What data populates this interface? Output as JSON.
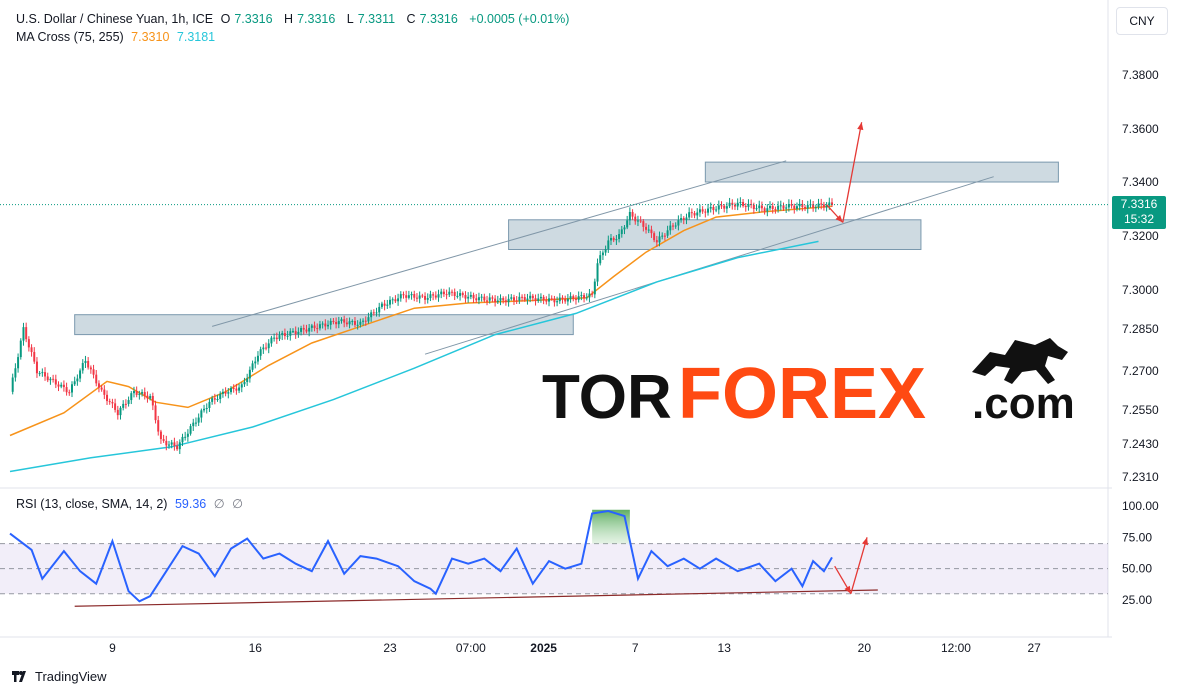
{
  "header": {
    "symbol": "U.S. Dollar / Chinese Yuan, 1h, ICE",
    "o_label": "O",
    "o_value": "7.3316",
    "h_label": "H",
    "h_value": "7.3316",
    "l_label": "L",
    "l_value": "7.3311",
    "c_label": "C",
    "c_value": "7.3316",
    "change": "+0.0005 (+0.01%)",
    "ma_label": "MA Cross (75, 255)",
    "ma_fast_value": "7.3310",
    "ma_slow_value": "7.3181",
    "rsi_label": "RSI (13, close, SMA, 14, 2)",
    "rsi_value": "59.36",
    "rsi_extra1": "∅",
    "rsi_extra2": "∅"
  },
  "currency_button": "CNY",
  "price_tag": {
    "price": "7.3316",
    "countdown": "15:32"
  },
  "footer": {
    "brand": "TradingView"
  },
  "watermark": {
    "part1": "TOR",
    "part2": "FOREX",
    "part3": ".com"
  },
  "colors": {
    "up": "#089981",
    "down": "#f23645",
    "ma_fast": "#f7931a",
    "ma_slow": "#26c6da",
    "rsi": "#2962ff",
    "zone_fill": "#c5d3dc",
    "arrow": "#e53935"
  },
  "chart_data": [
    {
      "type": "candlestick",
      "title": "U.S. Dollar / Chinese Yuan, 1h, ICE",
      "x_tick_labels": [
        "9",
        "16",
        "23",
        "07:00",
        "2025",
        "7",
        "13",
        "20",
        "12:00",
        "27"
      ],
      "y_tick_labels": [
        "7.3800",
        "7.3600",
        "7.3400",
        "7.3200",
        "7.3000",
        "7.2850",
        "7.2700",
        "7.2550",
        "7.2430",
        "7.2310"
      ],
      "y_ticks": [
        7.38,
        7.36,
        7.34,
        7.32,
        7.3,
        7.285,
        7.27,
        7.255,
        7.243,
        7.231
      ],
      "last_price": 7.3316,
      "close_path": [
        [
          0,
          7.262
        ],
        [
          5,
          7.285
        ],
        [
          10,
          7.27
        ],
        [
          16,
          7.266
        ],
        [
          22,
          7.262
        ],
        [
          28,
          7.274
        ],
        [
          34,
          7.262
        ],
        [
          40,
          7.254
        ],
        [
          46,
          7.262
        ],
        [
          52,
          7.26
        ],
        [
          56,
          7.244
        ],
        [
          62,
          7.242
        ],
        [
          68,
          7.25
        ],
        [
          74,
          7.258
        ],
        [
          80,
          7.262
        ],
        [
          86,
          7.264
        ],
        [
          92,
          7.276
        ],
        [
          98,
          7.282
        ],
        [
          106,
          7.284
        ],
        [
          114,
          7.286
        ],
        [
          122,
          7.288
        ],
        [
          130,
          7.287
        ],
        [
          138,
          7.294
        ],
        [
          146,
          7.298
        ],
        [
          154,
          7.297
        ],
        [
          162,
          7.299
        ],
        [
          172,
          7.297
        ],
        [
          182,
          7.296
        ],
        [
          192,
          7.297
        ],
        [
          202,
          7.296
        ],
        [
          210,
          7.297
        ],
        [
          216,
          7.298
        ],
        [
          218,
          7.31
        ],
        [
          222,
          7.318
        ],
        [
          226,
          7.32
        ],
        [
          230,
          7.328
        ],
        [
          236,
          7.323
        ],
        [
          240,
          7.318
        ],
        [
          246,
          7.324
        ],
        [
          252,
          7.328
        ],
        [
          260,
          7.33
        ],
        [
          270,
          7.332
        ],
        [
          280,
          7.33
        ],
        [
          288,
          7.331
        ],
        [
          296,
          7.331
        ],
        [
          305,
          7.3316
        ]
      ],
      "ma_fast_path": [
        [
          0,
          7.246
        ],
        [
          20,
          7.254
        ],
        [
          36,
          7.266
        ],
        [
          44,
          7.264
        ],
        [
          54,
          7.258
        ],
        [
          66,
          7.256
        ],
        [
          80,
          7.262
        ],
        [
          96,
          7.272
        ],
        [
          112,
          7.28
        ],
        [
          130,
          7.286
        ],
        [
          150,
          7.293
        ],
        [
          170,
          7.295
        ],
        [
          195,
          7.296
        ],
        [
          214,
          7.297
        ],
        [
          224,
          7.305
        ],
        [
          236,
          7.314
        ],
        [
          250,
          7.322
        ],
        [
          262,
          7.327
        ],
        [
          280,
          7.329
        ],
        [
          305,
          7.331
        ]
      ],
      "ma_slow_path": [
        [
          0,
          7.233
        ],
        [
          30,
          7.238
        ],
        [
          60,
          7.242
        ],
        [
          90,
          7.249
        ],
        [
          120,
          7.259
        ],
        [
          150,
          7.271
        ],
        [
          180,
          7.283
        ],
        [
          210,
          7.291
        ],
        [
          240,
          7.303
        ],
        [
          270,
          7.312
        ],
        [
          300,
          7.318
        ]
      ],
      "channel_lines": [
        {
          "from": [
            75,
            7.286
          ],
          "to": [
            288,
            7.348
          ]
        },
        {
          "from": [
            154,
            7.276
          ],
          "to": [
            365,
            7.342
          ]
        }
      ],
      "zones": [
        {
          "x_from": 24,
          "x_to": 209,
          "y_low": 7.283,
          "y_high": 7.2905
        },
        {
          "x_from": 185,
          "x_to": 338,
          "y_low": 7.315,
          "y_high": 7.326
        },
        {
          "x_from": 258,
          "x_to": 389,
          "y_low": 7.34,
          "y_high": 7.3475
        }
      ],
      "projection_arrows": [
        {
          "from": [
            303,
            7.3316
          ],
          "to": [
            309,
            7.325
          ]
        },
        {
          "from": [
            309,
            7.325
          ],
          "to": [
            316,
            7.3625
          ]
        }
      ]
    },
    {
      "type": "line",
      "title": "RSI (13, close, SMA, 14, 2)",
      "y_tick_labels": [
        "100.00",
        "75.00",
        "50.00",
        "25.00"
      ],
      "y_ticks": [
        100,
        75,
        50,
        25
      ],
      "band": [
        30,
        70
      ],
      "series": [
        {
          "name": "RSI",
          "points": [
            [
              0,
              78
            ],
            [
              8,
              65
            ],
            [
              12,
              42
            ],
            [
              20,
              64
            ],
            [
              26,
              48
            ],
            [
              32,
              38
            ],
            [
              38,
              72
            ],
            [
              44,
              32
            ],
            [
              48,
              24
            ],
            [
              52,
              28
            ],
            [
              58,
              48
            ],
            [
              64,
              68
            ],
            [
              70,
              62
            ],
            [
              76,
              44
            ],
            [
              82,
              66
            ],
            [
              88,
              74
            ],
            [
              94,
              58
            ],
            [
              100,
              62
            ],
            [
              106,
              54
            ],
            [
              112,
              48
            ],
            [
              118,
              72
            ],
            [
              124,
              46
            ],
            [
              130,
              60
            ],
            [
              136,
              58
            ],
            [
              144,
              52
            ],
            [
              150,
              40
            ],
            [
              156,
              34
            ],
            [
              158,
              30
            ],
            [
              164,
              58
            ],
            [
              170,
              54
            ],
            [
              176,
              58
            ],
            [
              182,
              48
            ],
            [
              188,
              66
            ],
            [
              194,
              38
            ],
            [
              200,
              56
            ],
            [
              206,
              50
            ],
            [
              212,
              54
            ],
            [
              216,
              94
            ],
            [
              222,
              96
            ],
            [
              228,
              92
            ],
            [
              231,
              62
            ],
            [
              233,
              42
            ],
            [
              238,
              64
            ],
            [
              244,
              52
            ],
            [
              250,
              58
            ],
            [
              256,
              50
            ],
            [
              262,
              58
            ],
            [
              270,
              48
            ],
            [
              278,
              54
            ],
            [
              284,
              40
            ],
            [
              290,
              50
            ],
            [
              294,
              36
            ],
            [
              298,
              56
            ],
            [
              302,
              48
            ],
            [
              305,
              59
            ]
          ]
        }
      ],
      "trend_line": {
        "from": [
          24,
          20
        ],
        "to": [
          322,
          33
        ]
      },
      "projection_arrows": [
        {
          "from": [
            306,
            52
          ],
          "to": [
            312,
            30
          ]
        },
        {
          "from": [
            312,
            30
          ],
          "to": [
            318,
            75
          ]
        }
      ]
    }
  ]
}
